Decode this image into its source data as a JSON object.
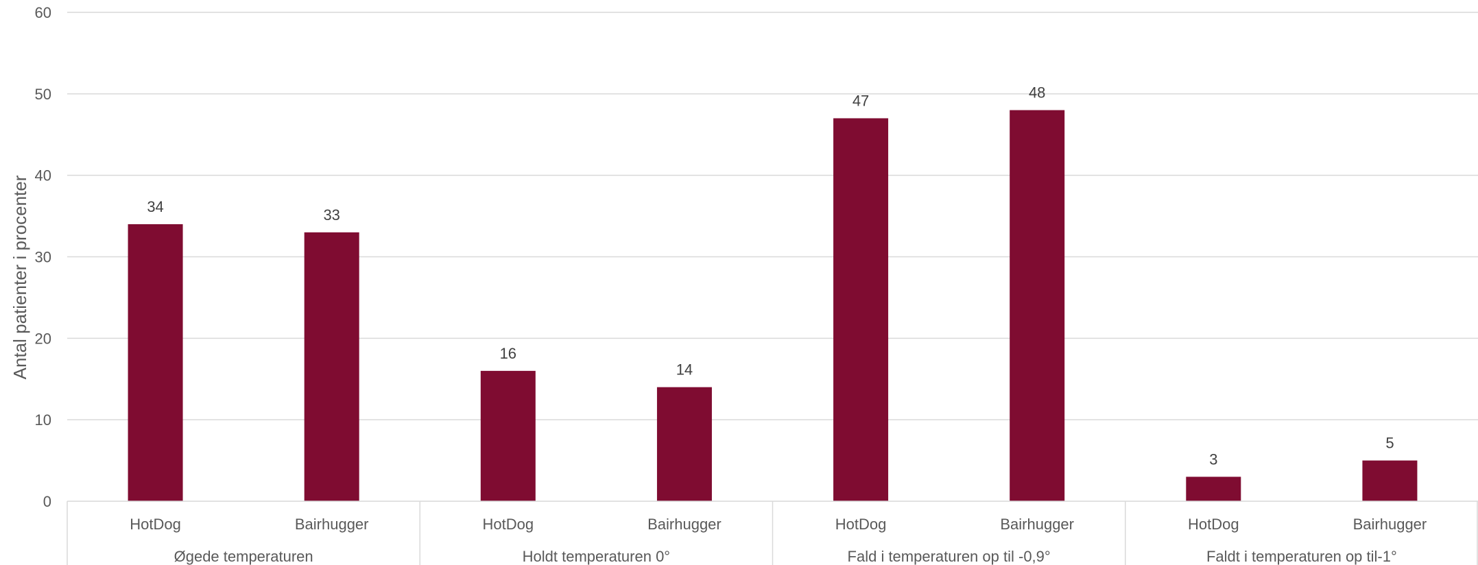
{
  "chart_data": {
    "type": "bar",
    "ylabel": "Antal patienter i procenter",
    "ylim": [
      0,
      60
    ],
    "y_ticks": [
      0,
      10,
      20,
      30,
      40,
      50,
      60
    ],
    "grid": true,
    "bar_color": "#7f0c31",
    "groups": [
      {
        "label": "Øgede temperaturen",
        "categories": [
          "HotDog",
          "Bairhugger"
        ],
        "values": [
          34,
          33
        ]
      },
      {
        "label": "Holdt temperaturen 0°",
        "categories": [
          "HotDog",
          "Bairhugger"
        ],
        "values": [
          16,
          14
        ]
      },
      {
        "label": "Fald i temperaturen op til -0,9°",
        "categories": [
          "HotDog",
          "Bairhugger"
        ],
        "values": [
          47,
          48
        ]
      },
      {
        "label": "Faldt i temperaturen op til-1°",
        "categories": [
          "HotDog",
          "Bairhugger"
        ],
        "values": [
          3,
          5
        ]
      }
    ]
  }
}
